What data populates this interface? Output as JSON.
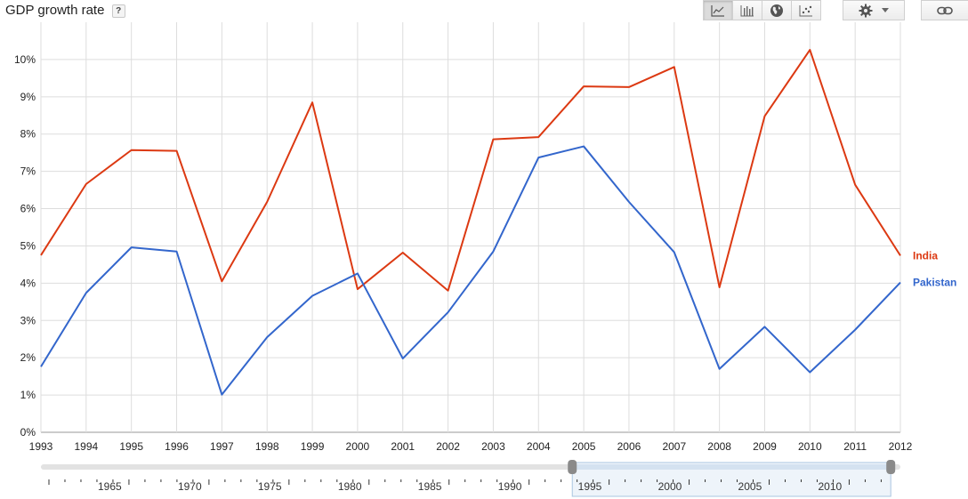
{
  "header": {
    "title": "GDP growth rate",
    "help_label": "?"
  },
  "toolbar": {
    "buttons": [
      {
        "icon": "line-chart-icon",
        "active": true
      },
      {
        "icon": "bar-chart-icon",
        "active": false
      },
      {
        "icon": "globe-icon",
        "active": false
      },
      {
        "icon": "scatter-chart-icon",
        "active": false
      }
    ],
    "settings_icon": "gear-icon",
    "dropdown_icon": "chevron-down-icon",
    "link_icon": "link-icon"
  },
  "chart_data": {
    "type": "line",
    "title": "GDP growth rate",
    "xlabel": "",
    "ylabel": "",
    "x": [
      1993,
      1994,
      1995,
      1996,
      1997,
      1998,
      1999,
      2000,
      2001,
      2002,
      2003,
      2004,
      2005,
      2006,
      2007,
      2008,
      2009,
      2010,
      2011,
      2012
    ],
    "ylim": [
      0,
      11
    ],
    "y_ticks": [
      0,
      1,
      2,
      3,
      4,
      5,
      6,
      7,
      8,
      9,
      10
    ],
    "y_tick_labels": [
      "0%",
      "1%",
      "2%",
      "3%",
      "4%",
      "5%",
      "6%",
      "7%",
      "8%",
      "9%",
      "10%"
    ],
    "grid": true,
    "legend_placement": "right",
    "series": [
      {
        "name": "India",
        "color": "#dc3912",
        "values": [
          4.75,
          6.66,
          7.57,
          7.55,
          4.05,
          6.18,
          8.85,
          3.84,
          4.82,
          3.8,
          7.86,
          7.92,
          9.28,
          9.26,
          9.8,
          3.89,
          8.48,
          10.26,
          6.64,
          4.74
        ]
      },
      {
        "name": "Pakistan",
        "color": "#3366cc",
        "values": [
          1.76,
          3.74,
          4.96,
          4.85,
          1.01,
          2.55,
          3.66,
          4.26,
          1.98,
          3.22,
          4.85,
          7.37,
          7.67,
          6.18,
          4.83,
          1.7,
          2.83,
          1.61,
          2.75,
          4.02
        ]
      }
    ]
  },
  "timeline": {
    "tick_labels": [
      "1965",
      "1970",
      "1975",
      "1980",
      "1985",
      "1990",
      "1995",
      "2000",
      "2005",
      "2010"
    ],
    "range_start": 1993,
    "range_end": 2012
  }
}
